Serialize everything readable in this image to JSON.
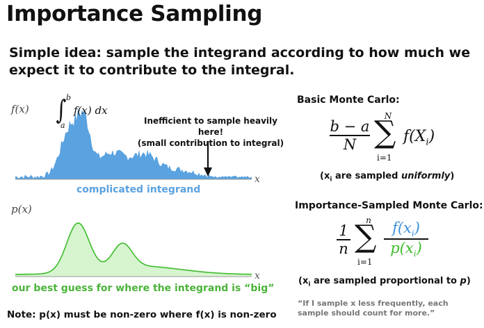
{
  "slide": {
    "title": "Importance Sampling",
    "subtitle": "Simple idea: sample the integrand according to how much we expect it to contribute to the integral."
  },
  "left": {
    "f_axis_label": "f(x)",
    "p_axis_label": "p(x)",
    "x_label_top": "x",
    "x_label_bottom": "x",
    "integral": {
      "upper": "b",
      "lower": "a",
      "body": "f(x) dx"
    },
    "annotation_line1": "Inefficient to sample heavily here!",
    "annotation_line2": "(small contribution to integral)",
    "caption_top": "complicated integrand",
    "caption_bottom": "our best guess for where the integrand is “big”",
    "note": "Note: p(x) must be non-zero where f(x) is non-zero",
    "colors": {
      "integrand": "#5aa2e0",
      "guess_stroke": "#3dbb2b",
      "guess_fill": "#d6f5cf"
    }
  },
  "right": {
    "basic_heading": "Basic Monte Carlo:",
    "basic_formula": {
      "numerator": "b − a",
      "denominator": "N",
      "sum_top": "N",
      "sum_bottom": "i=1",
      "term": "f(X",
      "term_sub": "i",
      "term_close": ")"
    },
    "basic_note_pre": "(x",
    "basic_note_sub": "i",
    "basic_note_mid": " are sampled ",
    "basic_note_em": "uniformly",
    "basic_note_post": ")",
    "imp_heading": "Importance-Sampled Monte Carlo:",
    "imp_formula": {
      "numerator": "1",
      "denominator": "n",
      "sum_top": "n",
      "sum_bottom": "i=1",
      "frac_top": "f(x",
      "frac_bottom": "p(x",
      "sub": "i",
      "close": ")"
    },
    "imp_note_pre": "(x",
    "imp_note_sub": "i",
    "imp_note_mid": " are sampled proportional to ",
    "imp_note_em": "p",
    "imp_note_post": ")",
    "quote": "“If I sample x less frequently, each sample should count for more.”"
  }
}
